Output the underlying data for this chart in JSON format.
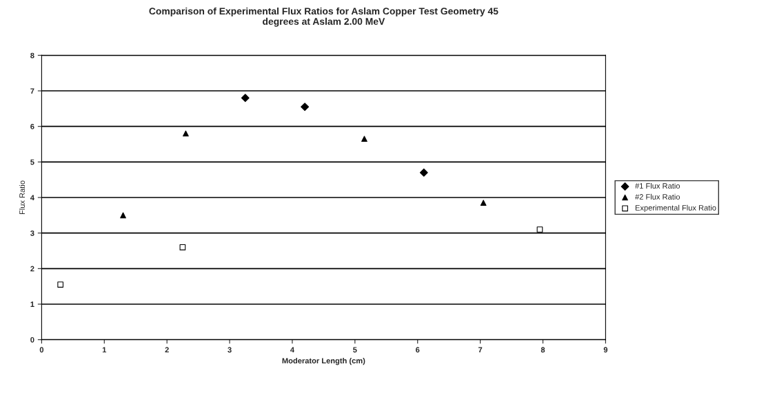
{
  "chart_data": {
    "type": "scatter",
    "title": "Comparison of Experimental Flux Ratios for Aslam Copper Test Geometry 45\ndegrees at Aslam 2.00 MeV",
    "xlabel": "Moderator Length (cm)",
    "ylabel": "Flux Ratio",
    "series": [
      {
        "name": "#1 Flux Ratio",
        "color": "#000000",
        "marker": "diamond",
        "x": [
          3.25,
          4.2,
          6.1
        ],
        "values": [
          6.8,
          6.55,
          4.7
        ]
      },
      {
        "name": "#2 Flux Ratio",
        "color": "#000000",
        "marker": "triangle",
        "x": [
          1.3,
          2.3,
          5.15,
          7.05
        ],
        "values": [
          3.5,
          5.8,
          5.65,
          3.85
        ]
      },
      {
        "name": "Experimental Flux Ratio",
        "color": "#ffffff",
        "marker": "square",
        "x": [
          0.3,
          2.25,
          7.95
        ],
        "values": [
          1.55,
          2.6,
          3.1
        ]
      }
    ],
    "xlim": [
      0,
      9
    ],
    "xticks": [
      0,
      1,
      2,
      3,
      4,
      5,
      6,
      7,
      8,
      9
    ],
    "ylim": [
      0,
      8
    ],
    "yticks": [
      0,
      1,
      2,
      3,
      4,
      5,
      6,
      7,
      8
    ],
    "grid": "y",
    "legend": "right"
  }
}
